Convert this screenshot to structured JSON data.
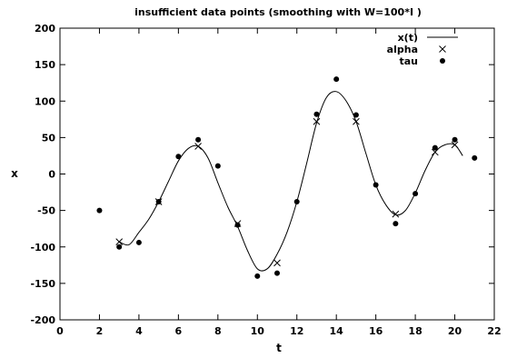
{
  "chart_data": {
    "type": "scatter",
    "title": "insufficient data points (smoothing with W=100*I )",
    "xlabel": "t",
    "ylabel": "x",
    "xlim": [
      0,
      22
    ],
    "ylim": [
      -200,
      200
    ],
    "xticks": [
      "0",
      "2",
      "4",
      "6",
      "8",
      "10",
      "12",
      "14",
      "16",
      "18",
      "20",
      "22"
    ],
    "yticks": [
      "-200",
      "-150",
      "-100",
      "-50",
      "0",
      "50",
      "100",
      "150",
      "200"
    ],
    "legend_position": "top-right",
    "grid": false,
    "series": [
      {
        "name": "x(t)",
        "kind": "line",
        "color": "#000000",
        "x": [
          3.0,
          3.5,
          4.0,
          4.5,
          5.0,
          5.5,
          6.0,
          6.5,
          7.0,
          7.5,
          8.0,
          8.5,
          9.0,
          9.5,
          10.0,
          10.5,
          11.0,
          11.5,
          12.0,
          12.5,
          13.0,
          13.5,
          14.0,
          14.5,
          15.0,
          15.5,
          16.0,
          16.5,
          17.0,
          17.5,
          18.0,
          18.5,
          19.0,
          19.5,
          20.0,
          20.4
        ],
        "y": [
          -93,
          -97,
          -80,
          -62,
          -38,
          -10,
          18,
          35,
          38,
          22,
          -12,
          -45,
          -72,
          -105,
          -130,
          -130,
          -110,
          -80,
          -38,
          15,
          70,
          105,
          113,
          100,
          72,
          28,
          -15,
          -42,
          -56,
          -50,
          -26,
          5,
          30,
          40,
          40,
          25
        ]
      },
      {
        "name": "alpha",
        "kind": "marker",
        "marker": "x",
        "color": "#000000",
        "x": [
          3,
          5,
          7,
          9,
          11,
          13,
          15,
          17,
          19,
          20
        ],
        "y": [
          -93,
          -38,
          38,
          -68,
          -122,
          72,
          72,
          -55,
          30,
          40
        ]
      },
      {
        "name": "tau",
        "kind": "marker",
        "marker": "dot",
        "color": "#000000",
        "x": [
          2,
          3,
          4,
          5,
          6,
          7,
          8,
          9,
          10,
          11,
          12,
          13,
          14,
          15,
          16,
          17,
          18,
          19,
          20,
          21
        ],
        "y": [
          -50,
          -100,
          -94,
          -38,
          24,
          47,
          11,
          -70,
          -140,
          -136,
          -38,
          82,
          130,
          81,
          -15,
          -68,
          -27,
          36,
          47,
          22
        ]
      }
    ]
  }
}
